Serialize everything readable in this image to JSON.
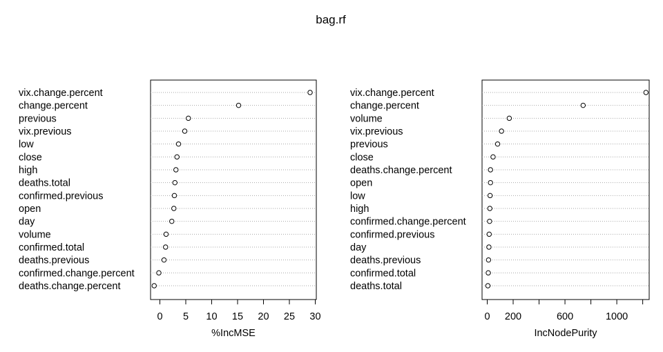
{
  "title": "bag.rf",
  "chart_data": [
    {
      "type": "scatter",
      "xlabel": "%IncMSE",
      "xlim": [
        -1.8,
        30.2
      ],
      "xticks": [
        0,
        5,
        10,
        15,
        20,
        25,
        30
      ],
      "grid": "dotted-horizontal",
      "categories": [
        "vix.change.percent",
        "change.percent",
        "previous",
        "vix.previous",
        "low",
        "close",
        "high",
        "deaths.total",
        "confirmed.previous",
        "open",
        "day",
        "volume",
        "confirmed.total",
        "deaths.previous",
        "confirmed.change.percent",
        "deaths.change.percent"
      ],
      "values": [
        29.0,
        15.2,
        5.5,
        4.8,
        3.6,
        3.3,
        3.1,
        2.9,
        2.8,
        2.7,
        2.3,
        1.2,
        1.1,
        0.8,
        -0.2,
        -1.1
      ]
    },
    {
      "type": "scatter",
      "xlabel": "IncNodePurity",
      "xlim": [
        -40,
        1250
      ],
      "xticks": [
        0,
        200,
        400,
        600,
        800,
        1000,
        1200
      ],
      "xticklabels": [
        "0",
        "200",
        "",
        "600",
        "",
        "1000",
        ""
      ],
      "grid": "dotted-horizontal",
      "categories": [
        "vix.change.percent",
        "change.percent",
        "volume",
        "vix.previous",
        "previous",
        "close",
        "deaths.change.percent",
        "open",
        "low",
        "high",
        "confirmed.change.percent",
        "confirmed.previous",
        "day",
        "deaths.previous",
        "confirmed.total",
        "deaths.total"
      ],
      "values": [
        1225,
        740,
        170,
        110,
        80,
        45,
        25,
        25,
        22,
        20,
        18,
        15,
        13,
        10,
        8,
        5
      ]
    }
  ]
}
